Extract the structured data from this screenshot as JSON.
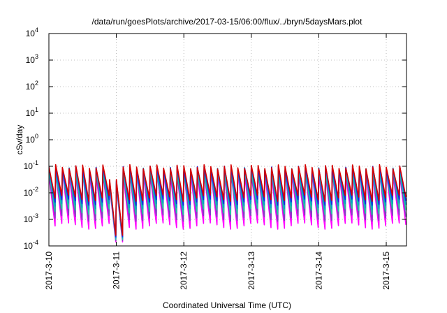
{
  "chart_data": {
    "type": "line",
    "title": "/data/run/goesPlots/archive/2017-03-15/06:00/flux/../bryn/5daysMars.plot",
    "xlabel": "Coordinated Universal Time (UTC)",
    "ylabel": "cSv/day",
    "x_range_days": [
      0,
      5.3
    ],
    "x_ticks": [
      {
        "label": "2017-3-10",
        "day": 0
      },
      {
        "label": "2017-3-11",
        "day": 1
      },
      {
        "label": "2017-3-12",
        "day": 2
      },
      {
        "label": "2017-3-13",
        "day": 3
      },
      {
        "label": "2017-3-14",
        "day": 4
      },
      {
        "label": "2017-3-15",
        "day": 5
      }
    ],
    "y_scale": "log",
    "ylim": [
      0.0001,
      10000
    ],
    "y_ticks": [
      {
        "base": "10",
        "exp": "-4",
        "value": 0.0001
      },
      {
        "base": "10",
        "exp": "-3",
        "value": 0.001
      },
      {
        "base": "10",
        "exp": "-2",
        "value": 0.01
      },
      {
        "base": "10",
        "exp": "-1",
        "value": 0.1
      },
      {
        "base": "10",
        "exp": "0",
        "value": 1
      },
      {
        "base": "10",
        "exp": "1",
        "value": 10
      },
      {
        "base": "10",
        "exp": "2",
        "value": 100
      },
      {
        "base": "10",
        "exp": "3",
        "value": 1000
      },
      {
        "base": "10",
        "exp": "4",
        "value": 10000
      }
    ],
    "grid": true,
    "legend": "none",
    "pattern": {
      "period_days": 0.1,
      "peak_log10": -1.02,
      "trough_log10_by_series": [
        -2.2,
        -2.35,
        -2.5,
        -2.7,
        -2.95,
        -3.25
      ],
      "dip_day": 1.0,
      "dip_trough_log10": -3.6,
      "dip_recovery_peak_log10": -1.5
    },
    "series": [
      {
        "color": "#d40000",
        "peak_offset": 0.0
      },
      {
        "color": "#2020e0",
        "peak_offset": -0.05
      },
      {
        "color": "#00a0c8",
        "peak_offset": -0.1
      },
      {
        "color": "#20c8a0",
        "peak_offset": -0.15
      },
      {
        "color": "#8040c0",
        "peak_offset": -0.2
      },
      {
        "color": "#ff00ff",
        "peak_offset": -0.25
      }
    ]
  }
}
